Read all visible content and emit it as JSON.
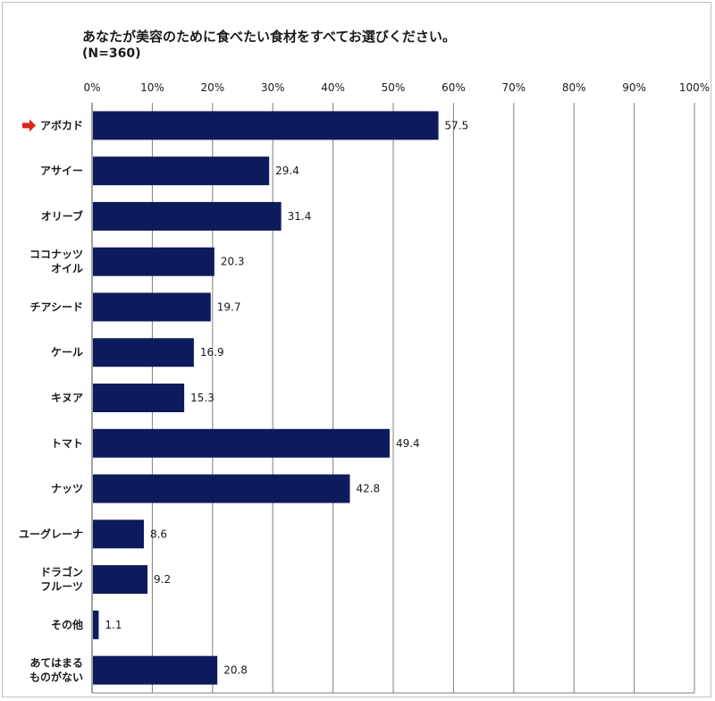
{
  "chart_data": {
    "type": "bar",
    "orientation": "horizontal",
    "title": "あなたが美容のために食べたい食材をすべてお選びください。",
    "subtitle": "(N=360)",
    "xlim": [
      0,
      100
    ],
    "x_ticks": [
      "0%",
      "10%",
      "20%",
      "30%",
      "40%",
      "50%",
      "60%",
      "70%",
      "80%",
      "90%",
      "100%"
    ],
    "grid": true,
    "bar_color": "#0d1a5c",
    "highlight_color": "#d9261c",
    "highlight_index": 0,
    "categories": [
      [
        "アボカド"
      ],
      [
        "アサイー"
      ],
      [
        "オリーブ"
      ],
      [
        "ココナッツ",
        "オイル"
      ],
      [
        "チアシード"
      ],
      [
        "ケール"
      ],
      [
        "キヌア"
      ],
      [
        "トマト"
      ],
      [
        "ナッツ"
      ],
      [
        "ユーグレーナ"
      ],
      [
        "ドラゴン",
        "フルーツ"
      ],
      [
        "その他"
      ],
      [
        "あてはまる",
        "ものがない"
      ]
    ],
    "values": [
      57.5,
      29.4,
      31.4,
      20.3,
      19.7,
      16.9,
      15.3,
      49.4,
      42.8,
      8.6,
      9.2,
      1.1,
      20.8
    ],
    "value_labels": [
      "57.5",
      "29.4",
      "31.4",
      "20.3",
      "19.7",
      "16.9",
      "15.3",
      "49.4",
      "42.8",
      "8.6",
      "9.2",
      "1.1",
      "20.8"
    ]
  }
}
